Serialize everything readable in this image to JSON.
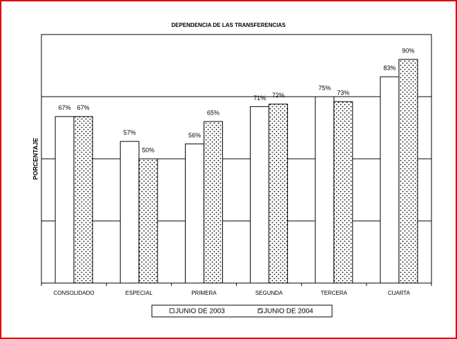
{
  "chart_data": {
    "type": "bar",
    "title": "DEPENDENCIA DE LAS TRANSFERENCIAS",
    "y_label": "PORCENTAJE",
    "categories": [
      "CONSOLIDADO",
      "ESPECIAL",
      "PRIMERA",
      "SEGUNDA",
      "TERCERA",
      "CUARTA"
    ],
    "series": [
      {
        "name": "JUNIO DE 2003",
        "color": "#ffffff",
        "values": [
          67,
          57,
          56,
          71,
          75,
          83
        ],
        "value_labels": [
          "67%",
          "57%",
          "56%",
          "71%",
          "75%",
          "83%"
        ]
      },
      {
        "name": "JUNIO DE 2004",
        "color": "dotted",
        "values": [
          67,
          50,
          65,
          72,
          73,
          90
        ],
        "value_labels": [
          "67%",
          "50%",
          "65%",
          "72%",
          "73%",
          "90%"
        ]
      }
    ],
    "ylim": [
      0,
      100
    ],
    "gridlines": [
      25,
      50,
      75
    ],
    "legend": "bottom"
  }
}
